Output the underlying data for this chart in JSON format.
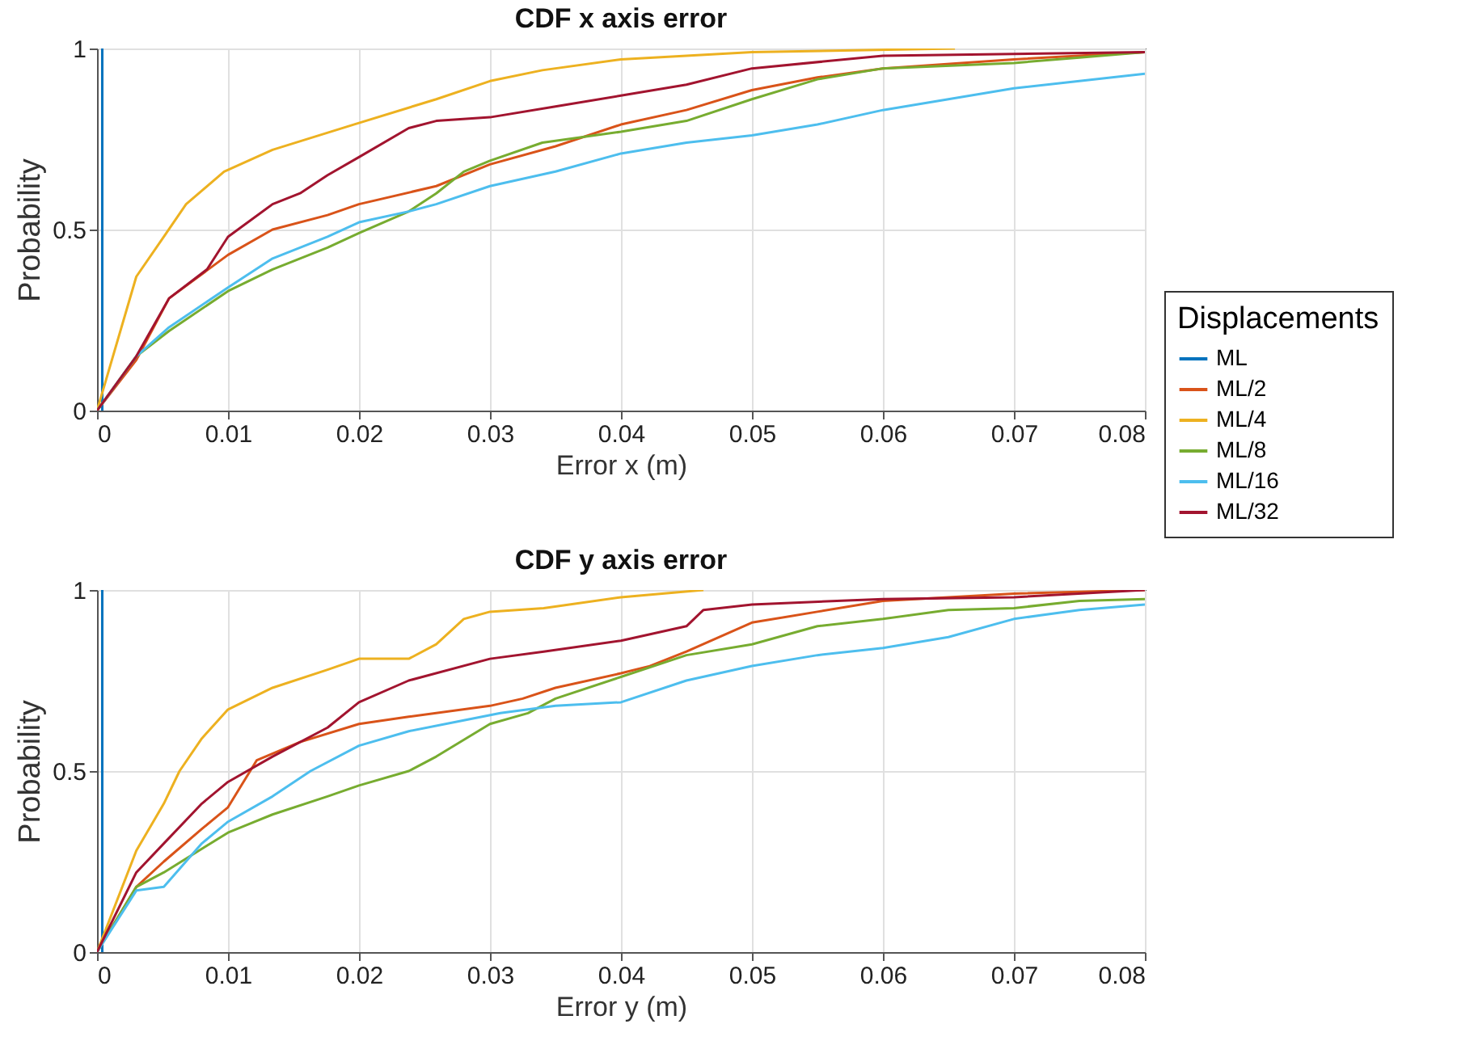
{
  "chart_data": [
    {
      "type": "line",
      "title": "CDF x axis error",
      "xlabel": "Error x (m)",
      "ylabel": "Probability",
      "legend_title": "Displacements",
      "legend": "right",
      "grid": true,
      "line_style": "solid",
      "marker": "none",
      "xlim": [
        0,
        0.08
      ],
      "xticks": [
        0,
        0.01,
        0.02,
        0.03,
        0.04,
        0.05,
        0.06,
        0.07,
        0.08
      ],
      "ylim": [
        0,
        1
      ],
      "yticks": [
        0,
        0.5,
        1
      ],
      "series": [
        {
          "name": "ML",
          "color": "#0072bd",
          "x": [
            0.0004,
            0.0004
          ],
          "values": [
            0,
            1
          ]
        },
        {
          "name": "ML/2",
          "color": "#d95319",
          "x": [
            0,
            0.003,
            0.0055,
            0.01,
            0.0134,
            0.0176,
            0.02,
            0.0259,
            0.03,
            0.035,
            0.04,
            0.045,
            0.05,
            0.055,
            0.06,
            0.07,
            0.08
          ],
          "values": [
            0,
            0.14,
            0.31,
            0.43,
            0.5,
            0.54,
            0.57,
            0.62,
            0.68,
            0.73,
            0.79,
            0.83,
            0.885,
            0.92,
            0.945,
            0.97,
            0.99
          ]
        },
        {
          "name": "ML/4",
          "color": "#edb120",
          "x": [
            0,
            0.003,
            0.0051,
            0.0068,
            0.0097,
            0.0134,
            0.0196,
            0.0259,
            0.03,
            0.034,
            0.04,
            0.05,
            0.0655
          ],
          "values": [
            0,
            0.37,
            0.48,
            0.57,
            0.66,
            0.72,
            0.79,
            0.86,
            0.91,
            0.94,
            0.97,
            0.99,
            1.0
          ]
        },
        {
          "name": "ML/8",
          "color": "#77ac30",
          "x": [
            0,
            0.003,
            0.0055,
            0.01,
            0.0134,
            0.0176,
            0.02,
            0.0238,
            0.0259,
            0.028,
            0.03,
            0.034,
            0.04,
            0.045,
            0.05,
            0.055,
            0.06,
            0.07,
            0.075,
            0.08
          ],
          "values": [
            0,
            0.15,
            0.22,
            0.33,
            0.39,
            0.45,
            0.49,
            0.55,
            0.6,
            0.66,
            0.69,
            0.74,
            0.77,
            0.8,
            0.86,
            0.915,
            0.945,
            0.96,
            0.975,
            0.99
          ]
        },
        {
          "name": "ML/16",
          "color": "#4dbeee",
          "x": [
            0,
            0.003,
            0.0055,
            0.01,
            0.0134,
            0.0176,
            0.02,
            0.0238,
            0.0259,
            0.03,
            0.035,
            0.04,
            0.045,
            0.05,
            0.055,
            0.06,
            0.065,
            0.07,
            0.075,
            0.08
          ],
          "values": [
            0,
            0.15,
            0.23,
            0.34,
            0.42,
            0.48,
            0.52,
            0.55,
            0.57,
            0.62,
            0.66,
            0.71,
            0.74,
            0.76,
            0.79,
            0.83,
            0.86,
            0.89,
            0.91,
            0.93
          ]
        },
        {
          "name": "ML/32",
          "color": "#a2142f",
          "x": [
            0,
            0.003,
            0.0055,
            0.0084,
            0.01,
            0.0134,
            0.0155,
            0.0176,
            0.02,
            0.0238,
            0.0259,
            0.03,
            0.035,
            0.04,
            0.045,
            0.05,
            0.06,
            0.07,
            0.08
          ],
          "values": [
            0,
            0.15,
            0.31,
            0.39,
            0.48,
            0.57,
            0.6,
            0.65,
            0.7,
            0.78,
            0.8,
            0.81,
            0.84,
            0.87,
            0.9,
            0.945,
            0.98,
            0.985,
            0.99
          ]
        }
      ]
    },
    {
      "type": "line",
      "title": "CDF y axis error",
      "xlabel": "Error y (m)",
      "ylabel": "Probability",
      "grid": true,
      "line_style": "solid",
      "marker": "none",
      "xlim": [
        0,
        0.08
      ],
      "xticks": [
        0,
        0.01,
        0.02,
        0.03,
        0.04,
        0.05,
        0.06,
        0.07,
        0.08
      ],
      "ylim": [
        0,
        1
      ],
      "yticks": [
        0,
        0.5,
        1
      ],
      "series": [
        {
          "color": "#0072bd",
          "x": [
            0.0004,
            0.0004
          ],
          "values": [
            0,
            1
          ]
        },
        {
          "color": "#d95319",
          "x": [
            0,
            0.003,
            0.0051,
            0.008,
            0.01,
            0.0122,
            0.0155,
            0.02,
            0.0238,
            0.03,
            0.0325,
            0.035,
            0.04,
            0.0422,
            0.045,
            0.05,
            0.055,
            0.06,
            0.07,
            0.08
          ],
          "values": [
            0,
            0.18,
            0.25,
            0.34,
            0.4,
            0.53,
            0.58,
            0.63,
            0.65,
            0.68,
            0.7,
            0.73,
            0.77,
            0.79,
            0.83,
            0.91,
            0.94,
            0.97,
            0.99,
            1.0
          ]
        },
        {
          "color": "#edb120",
          "x": [
            0,
            0.003,
            0.0051,
            0.0063,
            0.008,
            0.01,
            0.0134,
            0.0176,
            0.02,
            0.0238,
            0.0259,
            0.028,
            0.03,
            0.0341,
            0.04,
            0.0463
          ],
          "values": [
            0,
            0.28,
            0.41,
            0.5,
            0.59,
            0.67,
            0.73,
            0.78,
            0.81,
            0.81,
            0.85,
            0.92,
            0.94,
            0.95,
            0.98,
            1.0
          ]
        },
        {
          "color": "#77ac30",
          "x": [
            0,
            0.003,
            0.0051,
            0.01,
            0.0134,
            0.0176,
            0.02,
            0.0238,
            0.0259,
            0.03,
            0.0329,
            0.035,
            0.04,
            0.045,
            0.05,
            0.055,
            0.06,
            0.065,
            0.07,
            0.075,
            0.08
          ],
          "values": [
            0,
            0.18,
            0.22,
            0.33,
            0.38,
            0.43,
            0.46,
            0.5,
            0.54,
            0.63,
            0.66,
            0.7,
            0.76,
            0.82,
            0.85,
            0.9,
            0.92,
            0.945,
            0.95,
            0.97,
            0.975
          ]
        },
        {
          "color": "#4dbeee",
          "x": [
            0,
            0.003,
            0.0051,
            0.008,
            0.01,
            0.0134,
            0.0163,
            0.02,
            0.0238,
            0.028,
            0.0308,
            0.035,
            0.04,
            0.045,
            0.05,
            0.055,
            0.06,
            0.065,
            0.07,
            0.075,
            0.08
          ],
          "values": [
            0,
            0.17,
            0.18,
            0.3,
            0.36,
            0.43,
            0.5,
            0.57,
            0.61,
            0.64,
            0.66,
            0.68,
            0.69,
            0.75,
            0.79,
            0.82,
            0.84,
            0.87,
            0.92,
            0.945,
            0.96
          ]
        },
        {
          "color": "#a2142f",
          "x": [
            0,
            0.003,
            0.0051,
            0.008,
            0.01,
            0.0134,
            0.0176,
            0.02,
            0.0238,
            0.03,
            0.0341,
            0.04,
            0.045,
            0.0463,
            0.05,
            0.06,
            0.07,
            0.08
          ],
          "values": [
            0,
            0.22,
            0.3,
            0.41,
            0.47,
            0.54,
            0.62,
            0.69,
            0.75,
            0.81,
            0.83,
            0.86,
            0.9,
            0.945,
            0.96,
            0.975,
            0.98,
            1.0
          ]
        }
      ]
    }
  ]
}
